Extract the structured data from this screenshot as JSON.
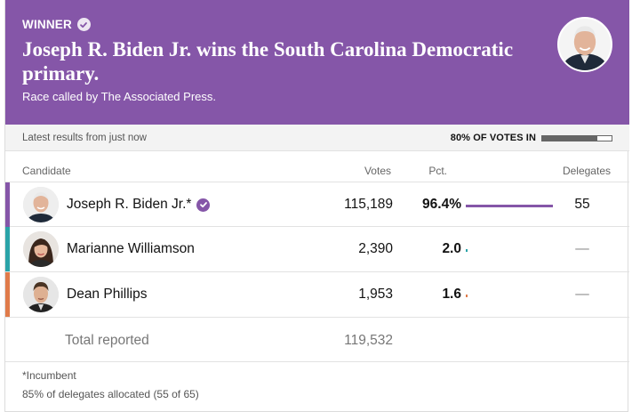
{
  "banner": {
    "winner_label": "WINNER",
    "headline": "Joseph R. Biden Jr. wins the South Carolina Democratic primary.",
    "subline": "Race called by The Associated Press.",
    "background_color": "#8556a8"
  },
  "status": {
    "updated": "Latest results from just now",
    "reporting_label": "80% OF VOTES IN",
    "reporting_fraction": 0.8
  },
  "columns": {
    "candidate": "Candidate",
    "votes": "Votes",
    "pct": "Pct.",
    "delegates": "Delegates"
  },
  "candidates": [
    {
      "name": "Joseph R. Biden Jr.*",
      "winner": true,
      "votes": "115,189",
      "pct": "96.4%",
      "pct_value": 96.4,
      "delegates": "55",
      "color": "#8556a8"
    },
    {
      "name": "Marianne Williamson",
      "winner": false,
      "votes": "2,390",
      "pct": "2.0",
      "pct_value": 2.0,
      "delegates": "—",
      "color": "#2aa3a8"
    },
    {
      "name": "Dean Phillips",
      "winner": false,
      "votes": "1,953",
      "pct": "1.6",
      "pct_value": 1.6,
      "delegates": "—",
      "color": "#e07b4a"
    }
  ],
  "total": {
    "label": "Total reported",
    "votes": "119,532"
  },
  "footnotes": {
    "incumbent": "*Incumbent",
    "delegates": "85% of delegates allocated (55 of 65)"
  }
}
